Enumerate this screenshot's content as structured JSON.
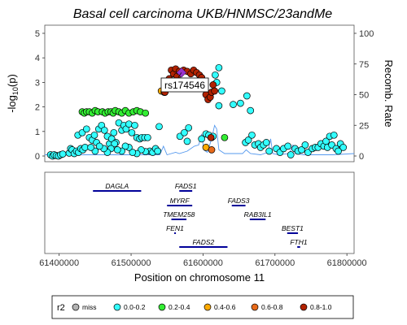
{
  "chart_data": {
    "type": "scatter",
    "title": "Basal cell carcinoma UKB/HNMSC/23andMe",
    "ylabel_left": "-log10(p)",
    "ylabel_left_main": "-log",
    "ylabel_left_sub": "10",
    "ylabel_left_tail": "(p)",
    "ylabel_right": "Recomb. Rate",
    "xlabel": "Position on chromosome 11",
    "xlim": [
      61380000,
      61810000
    ],
    "ylim_left": [
      0,
      5
    ],
    "ylim_right": [
      0,
      100
    ],
    "yticks_left": [
      "0",
      "1",
      "2",
      "3",
      "4",
      "5"
    ],
    "yticks_right": [
      "0",
      "25",
      "50",
      "75",
      "100"
    ],
    "xticks": [
      "61400000",
      "61500000",
      "61600000",
      "61700000",
      "61800000"
    ],
    "lead_snp": {
      "name": "rs174546",
      "x": 61570000,
      "y": 3.4,
      "color": "#9933cc"
    },
    "legend": {
      "title": "r2",
      "entries": [
        {
          "label": "miss",
          "color": "#b3b3b3"
        },
        {
          "label": "0.0-0.2",
          "color": "#33ffff"
        },
        {
          "label": "0.2-0.4",
          "color": "#33ee33"
        },
        {
          "label": "0.4-0.6",
          "color": "#ffaa00"
        },
        {
          "label": "0.6-0.8",
          "color": "#e86a1a"
        },
        {
          "label": "0.8-1.0",
          "color": "#b22200"
        }
      ]
    },
    "recomb_rate": [
      [
        61380000,
        1
      ],
      [
        61540000,
        1
      ],
      [
        61545000,
        8
      ],
      [
        61550000,
        1
      ],
      [
        61562000,
        3
      ],
      [
        61567000,
        2
      ],
      [
        61578000,
        4
      ],
      [
        61583000,
        6
      ],
      [
        61588000,
        8
      ],
      [
        61594000,
        9
      ],
      [
        61598000,
        18
      ],
      [
        61601000,
        5
      ],
      [
        61606000,
        3
      ],
      [
        61612000,
        14
      ],
      [
        61616000,
        25
      ],
      [
        61619000,
        22
      ],
      [
        61622000,
        5
      ],
      [
        61630000,
        2
      ],
      [
        61655000,
        2
      ],
      [
        61660000,
        5
      ],
      [
        61666000,
        2
      ],
      [
        61680000,
        1
      ],
      [
        61690000,
        3
      ],
      [
        61694000,
        14
      ],
      [
        61697000,
        2
      ],
      [
        61705000,
        1
      ],
      [
        61720000,
        2
      ],
      [
        61725000,
        9
      ],
      [
        61728000,
        2
      ],
      [
        61740000,
        1
      ],
      [
        61780000,
        1
      ],
      [
        61810000,
        2
      ]
    ],
    "points": [
      {
        "group": "0.0-0.2",
        "data": [
          [
            61388000,
            0.05
          ],
          [
            61391000,
            0.0
          ],
          [
            61393000,
            0.05
          ],
          [
            61396000,
            0.02
          ],
          [
            61399000,
            0.0
          ],
          [
            61402000,
            0.05
          ],
          [
            61405000,
            0.08
          ],
          [
            61414000,
            0.12
          ],
          [
            61416000,
            0.3
          ],
          [
            61418000,
            0.25
          ],
          [
            61421000,
            0.1
          ],
          [
            61424000,
            0.2
          ],
          [
            61427000,
            0.15
          ],
          [
            61430000,
            0.3
          ],
          [
            61433000,
            0.25
          ],
          [
            61436000,
            0.35
          ],
          [
            61426000,
            0.85
          ],
          [
            61432000,
            0.95
          ],
          [
            61438000,
            1.1
          ],
          [
            61442000,
            0.75
          ],
          [
            61446000,
            0.65
          ],
          [
            61449000,
            0.85
          ],
          [
            61452000,
            0.55
          ],
          [
            61455000,
            1.1
          ],
          [
            61459000,
            1.25
          ],
          [
            61463000,
            1.05
          ],
          [
            61467000,
            0.8
          ],
          [
            61470000,
            0.5
          ],
          [
            61473000,
            0.7
          ],
          [
            61476000,
            0.95
          ],
          [
            61479000,
            0.55
          ],
          [
            61483000,
            1.35
          ],
          [
            61487000,
            1.05
          ],
          [
            61490000,
            1.25
          ],
          [
            61493000,
            1.1
          ],
          [
            61497000,
            1.3
          ],
          [
            61501000,
            0.95
          ],
          [
            61505000,
            1.25
          ],
          [
            61508000,
            0.75
          ],
          [
            61512000,
            0.7
          ],
          [
            61515000,
            0.75
          ],
          [
            61519000,
            0.75
          ],
          [
            61523000,
            0.75
          ],
          [
            61526000,
            0.2
          ],
          [
            61530000,
            0.15
          ],
          [
            61534000,
            0.3
          ],
          [
            61537000,
            0.2
          ],
          [
            61539000,
            1.2
          ],
          [
            61520000,
            0.18
          ],
          [
            61514000,
            0.25
          ],
          [
            61508000,
            0.1
          ],
          [
            61502000,
            0.15
          ],
          [
            61497000,
            0.35
          ],
          [
            61492000,
            0.4
          ],
          [
            61487000,
            0.2
          ],
          [
            61481000,
            0.25
          ],
          [
            61477000,
            0.5
          ],
          [
            61472000,
            0.3
          ],
          [
            61467000,
            0.15
          ],
          [
            61462000,
            0.3
          ],
          [
            61456000,
            0.4
          ],
          [
            61450000,
            0.2
          ],
          [
            61444000,
            0.35
          ],
          [
            61568000,
            0.8
          ],
          [
            61574000,
            0.95
          ],
          [
            61578000,
            0.6
          ],
          [
            61580000,
            1.15
          ],
          [
            61598000,
            0.7
          ],
          [
            61604000,
            0.9
          ],
          [
            61608000,
            0.85
          ],
          [
            61612000,
            0.75
          ],
          [
            61614000,
            0.8
          ],
          [
            61617000,
            3.3
          ],
          [
            61619000,
            3.0
          ],
          [
            61622000,
            3.6
          ],
          [
            61626000,
            2.65
          ],
          [
            61622000,
            2.05
          ],
          [
            61642000,
            2.1
          ],
          [
            61652000,
            2.15
          ],
          [
            61661000,
            2.45
          ],
          [
            61666000,
            1.85
          ],
          [
            61659000,
            0.55
          ],
          [
            61663000,
            0.65
          ],
          [
            61668000,
            0.85
          ],
          [
            61672000,
            0.45
          ],
          [
            61677000,
            0.5
          ],
          [
            61680000,
            0.35
          ],
          [
            61684000,
            0.45
          ],
          [
            61688000,
            0.55
          ],
          [
            61692000,
            0.2
          ],
          [
            61702000,
            0.3
          ],
          [
            61707000,
            0.15
          ],
          [
            61712000,
            0.3
          ],
          [
            61718000,
            0.4
          ],
          [
            61722000,
            0.05
          ],
          [
            61728000,
            0.3
          ],
          [
            61732000,
            0.2
          ],
          [
            61737000,
            0.25
          ],
          [
            61742000,
            0.45
          ],
          [
            61746000,
            0.15
          ],
          [
            61752000,
            0.3
          ],
          [
            61756000,
            0.35
          ],
          [
            61760000,
            0.35
          ],
          [
            61764000,
            0.5
          ],
          [
            61768000,
            0.4
          ],
          [
            61771000,
            0.6
          ],
          [
            61773000,
            0.35
          ],
          [
            61776000,
            0.8
          ],
          [
            61779000,
            0.45
          ],
          [
            61782000,
            0.85
          ],
          [
            61785000,
            0.3
          ],
          [
            61788000,
            0.2
          ],
          [
            61791000,
            0.5
          ],
          [
            61795000,
            0.35
          ]
        ]
      },
      {
        "group": "0.2-0.4",
        "data": [
          [
            61432000,
            1.8
          ],
          [
            61435000,
            1.75
          ],
          [
            61438000,
            1.8
          ],
          [
            61442000,
            1.8
          ],
          [
            61446000,
            1.75
          ],
          [
            61450000,
            1.85
          ],
          [
            61454000,
            1.8
          ],
          [
            61460000,
            1.8
          ],
          [
            61464000,
            1.75
          ],
          [
            61468000,
            1.8
          ],
          [
            61472000,
            1.8
          ],
          [
            61475000,
            1.75
          ],
          [
            61478000,
            1.85
          ],
          [
            61483000,
            1.8
          ],
          [
            61487000,
            1.75
          ],
          [
            61492000,
            1.85
          ],
          [
            61497000,
            1.75
          ],
          [
            61503000,
            1.8
          ],
          [
            61508000,
            1.85
          ],
          [
            61513000,
            1.8
          ],
          [
            61520000,
            1.75
          ],
          [
            61630000,
            0.75
          ]
        ]
      },
      {
        "group": "0.4-0.6",
        "data": [
          [
            61542000,
            2.65
          ],
          [
            61547000,
            2.6
          ],
          [
            61604000,
            0.35
          ]
        ]
      },
      {
        "group": "0.6-0.8",
        "data": [
          [
            61546000,
            2.6
          ],
          [
            61612000,
            0.25
          ]
        ]
      },
      {
        "group": "0.8-1.0",
        "data": [
          [
            61547000,
            2.6
          ],
          [
            61553000,
            3.15
          ],
          [
            61556000,
            3.5
          ],
          [
            61559000,
            3.35
          ],
          [
            61562000,
            3.55
          ],
          [
            61564000,
            3.25
          ],
          [
            61567000,
            3.45
          ],
          [
            61573000,
            3.5
          ],
          [
            61578000,
            3.45
          ],
          [
            61583000,
            3.35
          ],
          [
            61587000,
            3.5
          ],
          [
            61591000,
            3.4
          ],
          [
            61595000,
            3.3
          ],
          [
            61598000,
            3.2
          ],
          [
            61601000,
            2.95
          ],
          [
            61604000,
            2.5
          ],
          [
            61607000,
            2.3
          ],
          [
            61610000,
            2.4
          ],
          [
            61612000,
            2.6
          ],
          [
            61614000,
            2.9
          ],
          [
            61616000,
            2.65
          ],
          [
            61611000,
            0.75
          ]
        ]
      }
    ],
    "genes": [
      {
        "name": "DAGLA",
        "start": 61447000,
        "end": 61514000,
        "row": 0,
        "color": "#000099"
      },
      {
        "name": "FADS1",
        "start": 61567000,
        "end": 61585000,
        "row": 0,
        "color": "#000099"
      },
      {
        "name": "MYRF",
        "start": 61550000,
        "end": 61585000,
        "row": 1,
        "color": "#000099"
      },
      {
        "name": "FADS3",
        "start": 61640000,
        "end": 61659000,
        "row": 1,
        "color": "#000099"
      },
      {
        "name": "TMEM258",
        "start": 61556000,
        "end": 61577000,
        "row": 2,
        "color": "#000099"
      },
      {
        "name": "RAB3IL1",
        "start": 61665000,
        "end": 61687000,
        "row": 2,
        "color": "#000099"
      },
      {
        "name": "FEN1",
        "start": 61560000,
        "end": 61562000,
        "row": 3,
        "color": "#000099"
      },
      {
        "name": "BEST1",
        "start": 61717000,
        "end": 61732000,
        "row": 3,
        "color": "#000099"
      },
      {
        "name": "FADS2",
        "start": 61567000,
        "end": 61634000,
        "row": 4,
        "color": "#000099"
      },
      {
        "name": "FTH1",
        "start": 61731000,
        "end": 61735000,
        "row": 4,
        "color": "#000099"
      }
    ]
  },
  "colors": {
    "recomb_line": "#5599ee",
    "axis": "#333333",
    "panel_border": "#555555"
  }
}
